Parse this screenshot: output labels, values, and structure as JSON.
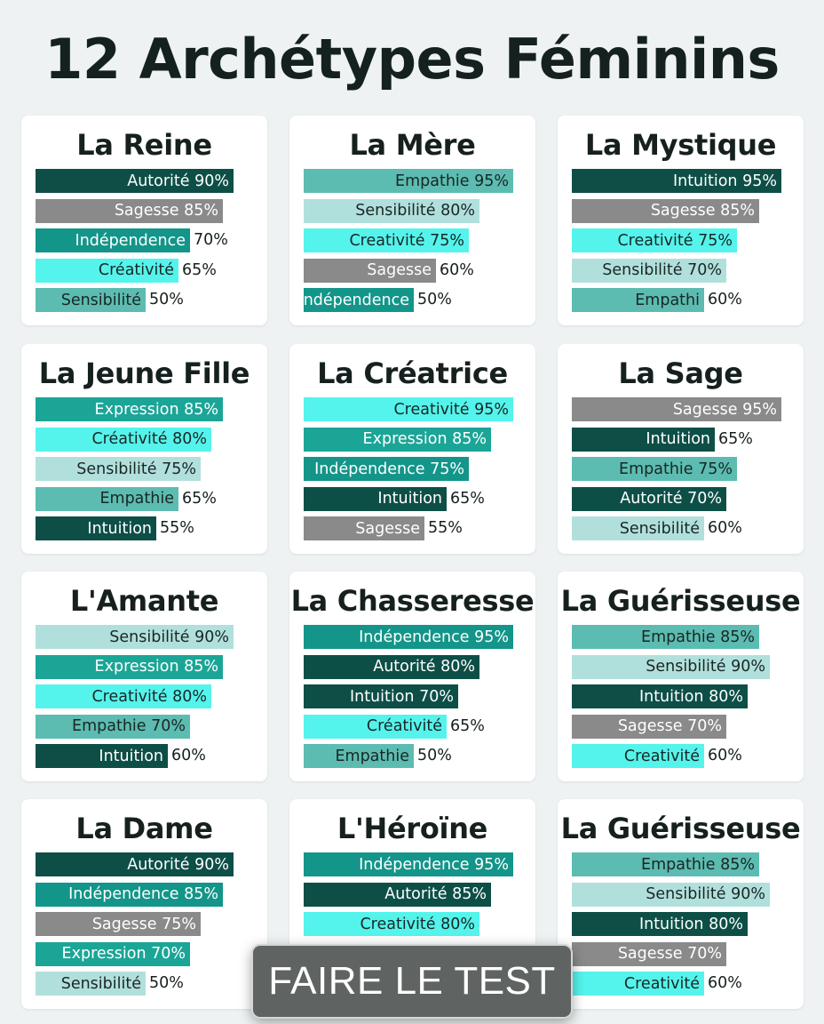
{
  "title": "12 Archétypes Féminins",
  "cta_label": "FAIRE LE TEST",
  "colors": {
    "Autorité": "#0d4f47",
    "Sagesse": "#8a8a8a",
    "Indépendence": "#139589",
    "Créativité": "#54f4ec",
    "Creativité": "#54f4ec",
    "Sensibilité": "#b1e0dc",
    "Empathie": "#5cbcb1",
    "Empathi": "#5cbcb1",
    "Intuition": "#0d4f47",
    "Expression": "#1ba597"
  },
  "chart_data": [
    {
      "type": "bar",
      "title": "La Reine",
      "bars": [
        {
          "label": "Autorité",
          "value": 90,
          "value_label": "90%",
          "value_inside": true,
          "color": "#0d4f47"
        },
        {
          "label": "Sagesse",
          "value": 85,
          "value_label": "85%",
          "value_inside": true,
          "color": "#8a8a8a"
        },
        {
          "label": "Indépendence",
          "value": 70,
          "value_label": "70%",
          "value_inside": false,
          "color": "#139589"
        },
        {
          "label": "Créativité",
          "value": 65,
          "value_label": "65%",
          "value_inside": false,
          "color": "#54f4ec"
        },
        {
          "label": "Sensibilité",
          "value": 50,
          "value_label": "50%",
          "value_inside": false,
          "color": "#5cbcb1"
        }
      ]
    },
    {
      "type": "bar",
      "title": "La Mère",
      "bars": [
        {
          "label": "Empathie",
          "value": 95,
          "value_label": "95%",
          "value_inside": true,
          "color": "#5cbcb1"
        },
        {
          "label": "Sensibilité",
          "value": 80,
          "value_label": "80%",
          "value_inside": true,
          "color": "#b1e0dc"
        },
        {
          "label": "Creativité",
          "value": 75,
          "value_label": "75%",
          "value_inside": true,
          "color": "#54f4ec"
        },
        {
          "label": "Sagesse",
          "value": 60,
          "value_label": "60%",
          "value_inside": false,
          "color": "#8a8a8a"
        },
        {
          "label": "Indépendence",
          "value": 50,
          "value_label": "50%",
          "value_inside": false,
          "color": "#139589"
        }
      ]
    },
    {
      "type": "bar",
      "title": "La Mystique",
      "bars": [
        {
          "label": "Intuition",
          "value": 95,
          "value_label": "95%",
          "value_inside": true,
          "color": "#0d4f47"
        },
        {
          "label": "Sagesse",
          "value": 85,
          "value_label": "85%",
          "value_inside": true,
          "color": "#8a8a8a"
        },
        {
          "label": "Creativité",
          "value": 75,
          "value_label": "75%",
          "value_inside": true,
          "color": "#54f4ec"
        },
        {
          "label": "Sensibilité",
          "value": 70,
          "value_label": "70%",
          "value_inside": true,
          "color": "#b1e0dc"
        },
        {
          "label": "Empathi",
          "value": 60,
          "value_label": "60%",
          "value_inside": false,
          "color": "#5cbcb1"
        }
      ]
    },
    {
      "type": "bar",
      "title": "La Jeune Fille",
      "bars": [
        {
          "label": "Expression",
          "value": 85,
          "value_label": "85%",
          "value_inside": true,
          "color": "#1ba597"
        },
        {
          "label": "Créativité",
          "value": 80,
          "value_label": "80%",
          "value_inside": true,
          "color": "#54f4ec"
        },
        {
          "label": "Sensibilité",
          "value": 75,
          "value_label": "75%",
          "value_inside": true,
          "color": "#b1e0dc"
        },
        {
          "label": "Empathie",
          "value": 65,
          "value_label": "65%",
          "value_inside": false,
          "color": "#5cbcb1"
        },
        {
          "label": "Intuition",
          "value": 55,
          "value_label": "55%",
          "value_inside": false,
          "color": "#0d4f47"
        }
      ]
    },
    {
      "type": "bar",
      "title": "La Créatrice",
      "bars": [
        {
          "label": "Creativité",
          "value": 95,
          "value_label": "95%",
          "value_inside": true,
          "color": "#54f4ec"
        },
        {
          "label": "Expression",
          "value": 85,
          "value_label": "85%",
          "value_inside": true,
          "color": "#1ba597"
        },
        {
          "label": "Indépendence",
          "value": 75,
          "value_label": "75%",
          "value_inside": true,
          "color": "#139589"
        },
        {
          "label": "Intuition",
          "value": 65,
          "value_label": "65%",
          "value_inside": false,
          "color": "#0d4f47"
        },
        {
          "label": "Sagesse",
          "value": 55,
          "value_label": "55%",
          "value_inside": false,
          "color": "#8a8a8a"
        }
      ]
    },
    {
      "type": "bar",
      "title": "La Sage",
      "bars": [
        {
          "label": "Sagesse",
          "value": 95,
          "value_label": "95%",
          "value_inside": true,
          "color": "#8a8a8a"
        },
        {
          "label": "Intuition",
          "value": 65,
          "value_label": "65%",
          "value_inside": false,
          "color": "#0d4f47"
        },
        {
          "label": "Empathie",
          "value": 75,
          "value_label": "75%",
          "value_inside": true,
          "color": "#5cbcb1"
        },
        {
          "label": "Autorité",
          "value": 70,
          "value_label": "70%",
          "value_inside": true,
          "color": "#0d4f47"
        },
        {
          "label": "Sensibilité",
          "value": 60,
          "value_label": "60%",
          "value_inside": false,
          "color": "#b1e0dc"
        }
      ]
    },
    {
      "type": "bar",
      "title": "L'Amante",
      "bars": [
        {
          "label": "Sensibilité",
          "value": 90,
          "value_label": "90%",
          "value_inside": true,
          "color": "#b1e0dc"
        },
        {
          "label": "Expression",
          "value": 85,
          "value_label": "85%",
          "value_inside": true,
          "color": "#1ba597"
        },
        {
          "label": "Creativité",
          "value": 80,
          "value_label": "80%",
          "value_inside": true,
          "color": "#54f4ec"
        },
        {
          "label": "Empathie",
          "value": 70,
          "value_label": "70%",
          "value_inside": true,
          "color": "#5cbcb1"
        },
        {
          "label": "Intuition",
          "value": 60,
          "value_label": "60%",
          "value_inside": false,
          "color": "#0d4f47"
        }
      ]
    },
    {
      "type": "bar",
      "title": "La Chasseresse",
      "bars": [
        {
          "label": "Indépendence",
          "value": 95,
          "value_label": "95%",
          "value_inside": true,
          "color": "#139589"
        },
        {
          "label": "Autorité",
          "value": 80,
          "value_label": "80%",
          "value_inside": true,
          "color": "#0d4f47"
        },
        {
          "label": "Intuition",
          "value": 70,
          "value_label": "70%",
          "value_inside": true,
          "color": "#0d4f47"
        },
        {
          "label": "Créativité",
          "value": 65,
          "value_label": "65%",
          "value_inside": false,
          "color": "#54f4ec"
        },
        {
          "label": "Empathie",
          "value": 50,
          "value_label": "50%",
          "value_inside": false,
          "color": "#5cbcb1"
        }
      ]
    },
    {
      "type": "bar",
      "title": "La Guérisseuse",
      "bars": [
        {
          "label": "Empathie",
          "value": 85,
          "value_label": "85%",
          "value_inside": true,
          "color": "#5cbcb1"
        },
        {
          "label": "Sensibilité",
          "value": 90,
          "value_label": "90%",
          "value_inside": true,
          "color": "#b1e0dc"
        },
        {
          "label": "Intuition",
          "value": 80,
          "value_label": "80%",
          "value_inside": true,
          "color": "#0d4f47"
        },
        {
          "label": "Sagesse",
          "value": 70,
          "value_label": "70%",
          "value_inside": true,
          "color": "#8a8a8a"
        },
        {
          "label": "Creativité",
          "value": 60,
          "value_label": "60%",
          "value_inside": false,
          "color": "#54f4ec"
        }
      ]
    },
    {
      "type": "bar",
      "title": "La Dame",
      "bars": [
        {
          "label": "Autorité",
          "value": 90,
          "value_label": "90%",
          "value_inside": true,
          "color": "#0d4f47"
        },
        {
          "label": "Indépendence",
          "value": 85,
          "value_label": "85%",
          "value_inside": true,
          "color": "#139589"
        },
        {
          "label": "Sagesse",
          "value": 75,
          "value_label": "75%",
          "value_inside": true,
          "color": "#8a8a8a"
        },
        {
          "label": "Expression",
          "value": 70,
          "value_label": "70%",
          "value_inside": true,
          "color": "#1ba597"
        },
        {
          "label": "Sensibilité",
          "value": 50,
          "value_label": "50%",
          "value_inside": false,
          "color": "#b1e0dc"
        }
      ]
    },
    {
      "type": "bar",
      "title": "L'Héroïne",
      "bars": [
        {
          "label": "Indépendence",
          "value": 95,
          "value_label": "95%",
          "value_inside": true,
          "color": "#139589"
        },
        {
          "label": "Autorité",
          "value": 85,
          "value_label": "85%",
          "value_inside": true,
          "color": "#0d4f47"
        },
        {
          "label": "Creativité",
          "value": 80,
          "value_label": "80%",
          "value_inside": true,
          "color": "#54f4ec"
        }
      ]
    },
    {
      "type": "bar",
      "title": "La Guérisseuse",
      "bars": [
        {
          "label": "Empathie",
          "value": 85,
          "value_label": "85%",
          "value_inside": true,
          "color": "#5cbcb1"
        },
        {
          "label": "Sensibilité",
          "value": 90,
          "value_label": "90%",
          "value_inside": true,
          "color": "#b1e0dc"
        },
        {
          "label": "Intuition",
          "value": 80,
          "value_label": "80%",
          "value_inside": true,
          "color": "#0d4f47"
        },
        {
          "label": "Sagesse",
          "value": 70,
          "value_label": "70%",
          "value_inside": true,
          "color": "#8a8a8a"
        },
        {
          "label": "Creativité",
          "value": 60,
          "value_label": "60%",
          "value_inside": false,
          "color": "#54f4ec"
        }
      ]
    }
  ]
}
